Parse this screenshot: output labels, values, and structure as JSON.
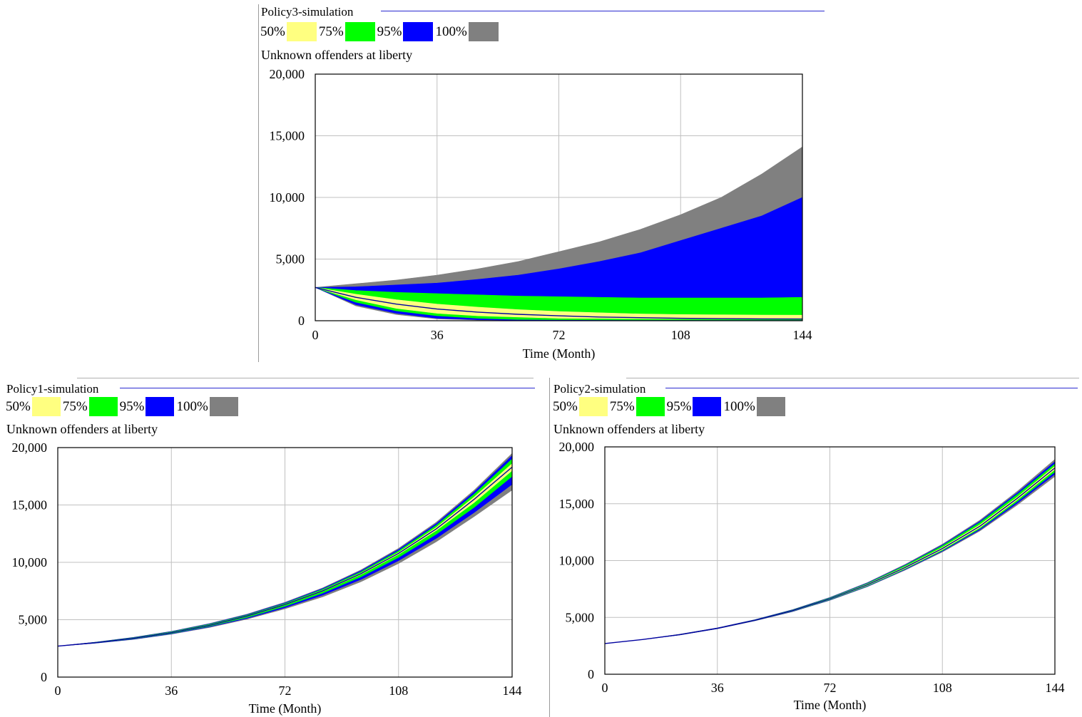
{
  "colors": {
    "p50": "#ffff80",
    "p75": "#00ff00",
    "p95": "#0000ff",
    "p100": "#808080",
    "median_line": "#0000a0",
    "grid": "#c0c0c0"
  },
  "panels": [
    {
      "title": "Policy3-simulation",
      "legend": [
        {
          "label": "50%",
          "color": "#ffff80"
        },
        {
          "label": "75%",
          "color": "#00ff00"
        },
        {
          "label": "95%",
          "color": "#0000ff"
        },
        {
          "label": "100%",
          "color": "#808080"
        }
      ],
      "variable": "Unknown offenders at liberty",
      "xlabel": "Time (Month)"
    },
    {
      "title": "Policy1-simulation",
      "legend": [
        {
          "label": "50%",
          "color": "#ffff80"
        },
        {
          "label": "75%",
          "color": "#00ff00"
        },
        {
          "label": "95%",
          "color": "#0000ff"
        },
        {
          "label": "100%",
          "color": "#808080"
        }
      ],
      "variable": "Unknown offenders at liberty",
      "xlabel": "Time (Month)"
    },
    {
      "title": "Policy2-simulation",
      "legend": [
        {
          "label": "50%",
          "color": "#ffff80"
        },
        {
          "label": "75%",
          "color": "#00ff00"
        },
        {
          "label": "95%",
          "color": "#0000ff"
        },
        {
          "label": "100%",
          "color": "#808080"
        }
      ],
      "variable": "Unknown offenders at liberty",
      "xlabel": "Time (Month)"
    }
  ],
  "chart_data": [
    {
      "type": "area",
      "title": "Policy3-simulation",
      "ylabel": "Unknown offenders at liberty",
      "xlabel": "Time (Month)",
      "xlim": [
        0,
        144
      ],
      "ylim": [
        0,
        20000
      ],
      "xticks": [
        "0",
        "36",
        "72",
        "108",
        "144"
      ],
      "yticks": [
        "0",
        "5,000",
        "10,000",
        "15,000",
        "20,000"
      ],
      "grid": true,
      "legend_placement": "top",
      "x": [
        0,
        12,
        24,
        36,
        48,
        60,
        72,
        84,
        96,
        108,
        120,
        132,
        144
      ],
      "bands": [
        {
          "name": "100%",
          "lower": [
            2700,
            1200,
            500,
            150,
            50,
            0,
            0,
            0,
            0,
            0,
            0,
            0,
            0
          ],
          "upper": [
            2700,
            3000,
            3300,
            3700,
            4200,
            4800,
            5600,
            6400,
            7400,
            8600,
            10000,
            11900,
            14100
          ]
        },
        {
          "name": "95%",
          "lower": [
            2700,
            1300,
            600,
            200,
            80,
            30,
            20,
            10,
            10,
            10,
            10,
            10,
            10
          ],
          "upper": [
            2700,
            2750,
            2900,
            3050,
            3350,
            3700,
            4200,
            4800,
            5500,
            6500,
            7500,
            8500,
            10000
          ]
        },
        {
          "name": "75%",
          "lower": [
            2700,
            1500,
            800,
            400,
            200,
            100,
            80,
            70,
            60,
            60,
            60,
            60,
            60
          ],
          "upper": [
            2700,
            2450,
            2300,
            2200,
            2100,
            2000,
            1950,
            1900,
            1850,
            1850,
            1850,
            1850,
            1900
          ]
        },
        {
          "name": "50%",
          "lower": [
            2700,
            1700,
            1000,
            600,
            400,
            300,
            200,
            180,
            160,
            150,
            140,
            140,
            140
          ],
          "upper": [
            2700,
            2150,
            1700,
            1350,
            1100,
            900,
            750,
            650,
            550,
            500,
            480,
            460,
            450
          ]
        }
      ],
      "median": [
        2700,
        1900,
        1350,
        950,
        700,
        520,
        400,
        300,
        250,
        200,
        170,
        150,
        140
      ]
    },
    {
      "type": "area",
      "title": "Policy1-simulation",
      "ylabel": "Unknown offenders at liberty",
      "xlabel": "Time (Month)",
      "xlim": [
        0,
        144
      ],
      "ylim": [
        0,
        20000
      ],
      "xticks": [
        "0",
        "36",
        "72",
        "108",
        "144"
      ],
      "yticks": [
        "0",
        "5,000",
        "10,000",
        "15,000",
        "20,000"
      ],
      "grid": true,
      "legend_placement": "top",
      "x": [
        0,
        12,
        24,
        36,
        48,
        60,
        72,
        84,
        96,
        108,
        120,
        132,
        144
      ],
      "bands": [
        {
          "name": "100%",
          "lower": [
            2700,
            2950,
            3280,
            3740,
            4320,
            5050,
            5950,
            7000,
            8300,
            9900,
            11800,
            14000,
            16300
          ]
        },
        {
          "name": "95%",
          "lower": [
            2700,
            2960,
            3300,
            3770,
            4370,
            5120,
            6050,
            7150,
            8500,
            10150,
            12100,
            14350,
            16800
          ]
        },
        {
          "name": "75%",
          "lower": [
            2700,
            2980,
            3330,
            3810,
            4430,
            5200,
            6170,
            7320,
            8720,
            10430,
            12450,
            14800,
            17500
          ]
        },
        {
          "name": "50%",
          "lower": [
            2700,
            2990,
            3360,
            3850,
            4480,
            5290,
            6290,
            7480,
            8930,
            10690,
            12780,
            15220,
            18000
          ]
        }
      ],
      "upper_bounds": {
        "100%": [
          2700,
          3050,
          3470,
          3990,
          4660,
          5490,
          6520,
          7780,
          9330,
          11220,
          13500,
          16300,
          19500
        ],
        "95%": [
          2700,
          3040,
          3450,
          3970,
          4630,
          5450,
          6470,
          7720,
          9250,
          11120,
          13380,
          16150,
          19300
        ],
        "75%": [
          2700,
          3030,
          3430,
          3940,
          4590,
          5400,
          6410,
          7650,
          9160,
          11000,
          13230,
          15950,
          19000
        ],
        "50%": [
          2700,
          3010,
          3400,
          3900,
          4540,
          5350,
          6350,
          7570,
          9050,
          10860,
          13050,
          15700,
          18600
        ]
      },
      "median": [
        2700,
        3000,
        3380,
        3870,
        4510,
        5320,
        6320,
        7520,
        9000,
        10780,
        12920,
        15500,
        18300
      ]
    },
    {
      "type": "area",
      "title": "Policy2-simulation",
      "ylabel": "Unknown offenders at liberty",
      "xlabel": "Time (Month)",
      "xlim": [
        0,
        144
      ],
      "ylim": [
        0,
        20000
      ],
      "xticks": [
        "0",
        "36",
        "72",
        "108",
        "144"
      ],
      "yticks": [
        "0",
        "5,000",
        "10,000",
        "15,000",
        "20,000"
      ],
      "grid": true,
      "legend_placement": "top",
      "x": [
        0,
        12,
        24,
        36,
        48,
        60,
        72,
        84,
        96,
        108,
        120,
        132,
        144
      ],
      "bands": [
        {
          "name": "100%",
          "lower": [
            2700,
            3050,
            3450,
            4000,
            4700,
            5500,
            6500,
            7700,
            9150,
            10750,
            12600,
            14900,
            17400
          ]
        },
        {
          "name": "95%",
          "lower": [
            2700,
            3050,
            3460,
            4010,
            4710,
            5520,
            6530,
            7730,
            9200,
            10820,
            12700,
            15050,
            17600
          ]
        },
        {
          "name": "75%",
          "lower": [
            2700,
            3050,
            3470,
            4020,
            4720,
            5540,
            6560,
            7770,
            9250,
            10890,
            12800,
            15200,
            17800
          ]
        },
        {
          "name": "50%",
          "lower": [
            2700,
            3050,
            3480,
            4030,
            4730,
            5560,
            6590,
            7810,
            9300,
            10960,
            12900,
            15350,
            18000
          ]
        }
      ],
      "upper_bounds": {
        "100%": [
          2700,
          3050,
          3520,
          4080,
          4800,
          5680,
          6760,
          8060,
          9650,
          11440,
          13550,
          16100,
          18900
        ],
        "95%": [
          2700,
          3050,
          3510,
          4070,
          4790,
          5660,
          6730,
          8020,
          9600,
          11370,
          13450,
          15960,
          18700
        ],
        "75%": [
          2700,
          3050,
          3500,
          4060,
          4780,
          5640,
          6700,
          7980,
          9550,
          11300,
          13350,
          15820,
          18500
        ],
        "50%": [
          2700,
          3050,
          3490,
          4050,
          4760,
          5610,
          6660,
          7920,
          9450,
          11150,
          13150,
          15600,
          18300
        ]
      },
      "median": [
        2700,
        3050,
        3485,
        4040,
        4745,
        5590,
        6630,
        7870,
        9380,
        11060,
        13020,
        15480,
        18150
      ]
    }
  ]
}
